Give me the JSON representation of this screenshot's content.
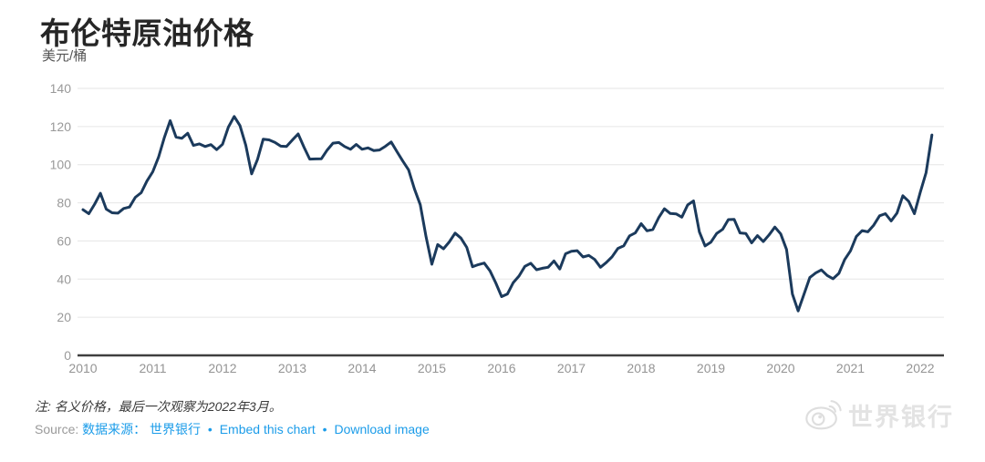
{
  "header": {
    "title": "布伦特原油价格",
    "unit_label": "美元/桶"
  },
  "chart_data": {
    "type": "line",
    "title": "布伦特原油价格",
    "xlabel": "",
    "ylabel": "美元/桶",
    "frequency": "monthly",
    "x_start": "2010-01",
    "x_end": "2022-03",
    "ylim": [
      0,
      140
    ],
    "yticks": [
      0,
      20,
      40,
      60,
      80,
      100,
      120,
      140
    ],
    "xticks": [
      2010,
      2011,
      2012,
      2013,
      2014,
      2015,
      2016,
      2017,
      2018,
      2019,
      2020,
      2021,
      2022
    ],
    "grid": true,
    "legend": false,
    "line_color": "#1b3a5c",
    "axis_color": "#3f3f3f",
    "grid_color": "#e6e6e6",
    "tick_label_color": "#999999",
    "series": [
      {
        "name": "布伦特原油价格 (美元/桶)",
        "values": [
          76.4,
          74.3,
          79.3,
          85.0,
          76.7,
          74.8,
          74.6,
          77.0,
          77.8,
          82.9,
          85.3,
          91.4,
          96.3,
          104.0,
          114.4,
          123.1,
          114.5,
          113.8,
          116.5,
          110.1,
          110.9,
          109.5,
          110.5,
          107.9,
          110.7,
          119.7,
          125.3,
          120.5,
          110.2,
          95.2,
          102.7,
          113.4,
          113.0,
          111.7,
          109.7,
          109.5,
          112.9,
          116.1,
          109.2,
          102.9,
          103.0,
          103.1,
          107.7,
          111.3,
          111.6,
          109.5,
          108.1,
          110.6,
          108.1,
          108.8,
          107.4,
          107.7,
          109.6,
          111.9,
          106.8,
          101.9,
          97.3,
          87.3,
          79.0,
          62.3,
          47.8,
          58.1,
          55.9,
          59.5,
          64.1,
          61.5,
          56.6,
          46.5,
          47.6,
          48.4,
          44.3,
          38.0,
          30.8,
          32.2,
          38.2,
          41.6,
          46.7,
          48.3,
          44.9,
          45.7,
          46.2,
          49.5,
          45.3,
          53.3,
          54.6,
          54.9,
          51.6,
          52.4,
          50.3,
          46.2,
          48.7,
          51.7,
          56.1,
          57.5,
          62.7,
          64.2,
          69.1,
          65.3,
          66.0,
          72.1,
          76.9,
          74.4,
          74.2,
          72.5,
          78.9,
          81.0,
          64.8,
          57.4,
          59.4,
          64.0,
          66.1,
          71.2,
          71.3,
          64.2,
          63.9,
          59.0,
          62.8,
          59.7,
          63.2,
          67.3,
          63.7,
          55.5,
          32.2,
          23.3,
          32.0,
          40.8,
          43.2,
          44.8,
          41.9,
          40.2,
          43.0,
          50.2,
          54.8,
          62.3,
          65.4,
          64.8,
          68.3,
          73.2,
          74.3,
          70.5,
          74.6,
          83.7,
          80.8,
          74.3,
          85.5,
          95.8,
          115.6
        ]
      }
    ]
  },
  "footer": {
    "note": "注: 名义价格，最后一次观察为2022年3月。",
    "source_label": "Source:",
    "separator": "•",
    "links": [
      {
        "label": "数据来源： 世界银行"
      },
      {
        "label": "Embed this chart"
      },
      {
        "label": "Download image"
      }
    ]
  },
  "watermark": {
    "text": "世界银行"
  }
}
